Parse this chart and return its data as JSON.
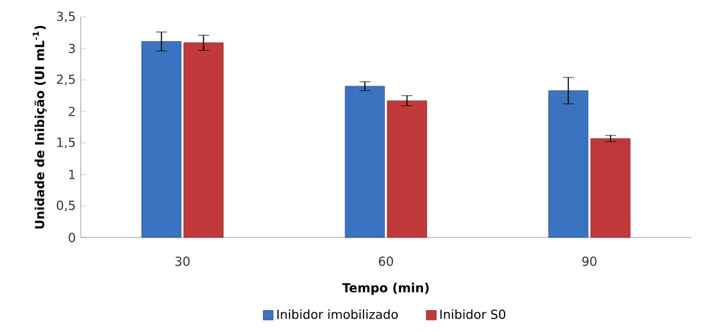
{
  "chart_data": {
    "type": "bar",
    "xlabel": "Tempo (min)",
    "ylabel": "Unidade de Inibição (UI mL$^{-1}$)",
    "categories": [
      "30",
      "60",
      "90"
    ],
    "series": [
      {
        "name": "Inibidor imobilizado",
        "color": "#3b73c0",
        "values": [
          3.11,
          2.4,
          2.33
        ],
        "errors": [
          0.15,
          0.07,
          0.21
        ]
      },
      {
        "name": "Inibidor S0",
        "color": "#c0393b",
        "values": [
          3.09,
          2.17,
          1.57
        ],
        "errors": [
          0.12,
          0.08,
          0.05
        ]
      }
    ],
    "ylim": [
      0,
      3.5
    ],
    "yticks": [
      {
        "value": 0,
        "label": "0"
      },
      {
        "value": 0.5,
        "label": "0,5"
      },
      {
        "value": 1,
        "label": "1"
      },
      {
        "value": 1.5,
        "label": "1,5"
      },
      {
        "value": 2,
        "label": "2"
      },
      {
        "value": 2.5,
        "label": "2,5"
      },
      {
        "value": 3,
        "label": "3"
      },
      {
        "value": 3.5,
        "label": "3,5"
      }
    ],
    "grid": false,
    "legend": "bottom"
  }
}
